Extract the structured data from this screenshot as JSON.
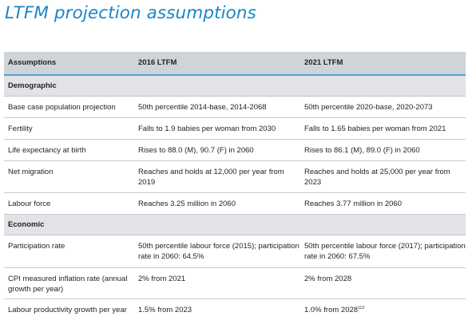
{
  "title": "LTFM projection assumptions",
  "table": {
    "headers": [
      "Assumptions",
      "2016 LTFM",
      "2021 LTFM"
    ],
    "sections": [
      {
        "name": "Demographic",
        "rows": [
          {
            "label": "Base case population projection",
            "v2016": "50th percentile 2014-base, 2014-2068",
            "v2021": "50th percentile 2020-base, 2020-2073"
          },
          {
            "label": "Fertility",
            "v2016": "Falls to 1.9 babies per woman from 2030",
            "v2021": "Falls to 1.65 babies per woman from 2021"
          },
          {
            "label": "Life expectancy at birth",
            "v2016": "Rises to 88.0 (M), 90.7 (F) in 2060",
            "v2021": "Rises to 86.1 (M), 89.0 (F) in 2060"
          },
          {
            "label": "Net migration",
            "v2016": "Reaches and holds at 12,000 per year from 2019",
            "v2021": "Reaches and holds at 25,000 per year from 2023"
          },
          {
            "label": "Labour force",
            "v2016": "Reaches 3.25 million in 2060",
            "v2021": "Reaches 3.77 million in 2060"
          }
        ]
      },
      {
        "name": "Economic",
        "rows": [
          {
            "label": "Participation rate",
            "v2016": "50th percentile labour force (2015); participation rate in 2060: 64.5%",
            "v2021": "50th percentile labour force (2017); participation rate in 2060: 67.5%"
          },
          {
            "label": "CPI measured inflation rate (annual growth per year)",
            "v2016": "2% from 2021",
            "v2021": "2% from 2028"
          },
          {
            "label": "Labour productivity growth per year",
            "v2016": "1.5% from 2023",
            "v2021": "1.0% from 2028",
            "v2021_sup": "113"
          }
        ]
      }
    ]
  }
}
